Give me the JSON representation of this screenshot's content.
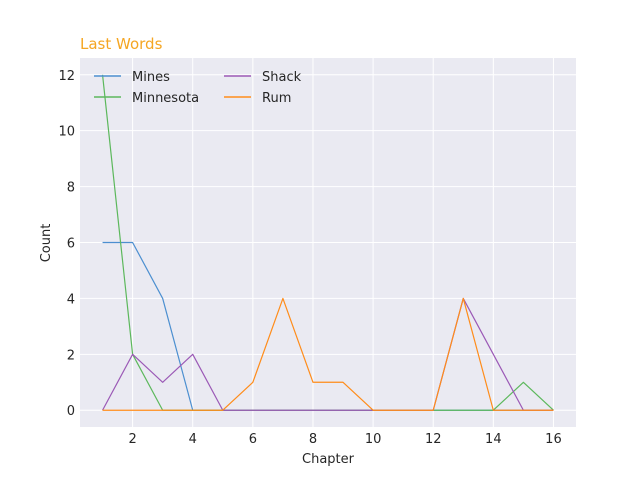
{
  "chart_data": {
    "type": "line",
    "title": "Last Words",
    "title_color": "#f5a623",
    "xlabel": "Chapter",
    "ylabel": "Count",
    "xlim": [
      0.25,
      16.75
    ],
    "ylim": [
      -0.6,
      12.6
    ],
    "xticks": [
      2,
      4,
      6,
      8,
      10,
      12,
      14,
      16
    ],
    "yticks": [
      0,
      2,
      4,
      6,
      8,
      10,
      12
    ],
    "grid": true,
    "background": "#eaeaf2",
    "legend_position": "top-left",
    "x": [
      1,
      2,
      3,
      4,
      5,
      6,
      7,
      8,
      9,
      10,
      11,
      12,
      13,
      14,
      15,
      16
    ],
    "series": [
      {
        "name": "Mines",
        "color": "#4c8fd0",
        "values": [
          6,
          6,
          4,
          0,
          0,
          0,
          0,
          0,
          0,
          0,
          0,
          0,
          0,
          0,
          0,
          0
        ]
      },
      {
        "name": "Minnesota",
        "color": "#5cb85c",
        "values": [
          12,
          2,
          0,
          0,
          0,
          0,
          0,
          0,
          0,
          0,
          0,
          0,
          0,
          0,
          1,
          0
        ]
      },
      {
        "name": "Shack",
        "color": "#9b59b6",
        "values": [
          0,
          2,
          1,
          2,
          0,
          0,
          0,
          0,
          0,
          0,
          0,
          0,
          4,
          2,
          0,
          0
        ]
      },
      {
        "name": "Rum",
        "color": "#ff8c1a",
        "values": [
          0,
          0,
          0,
          0,
          0,
          1,
          4,
          1,
          1,
          0,
          0,
          0,
          4,
          0,
          0,
          0
        ]
      }
    ]
  }
}
